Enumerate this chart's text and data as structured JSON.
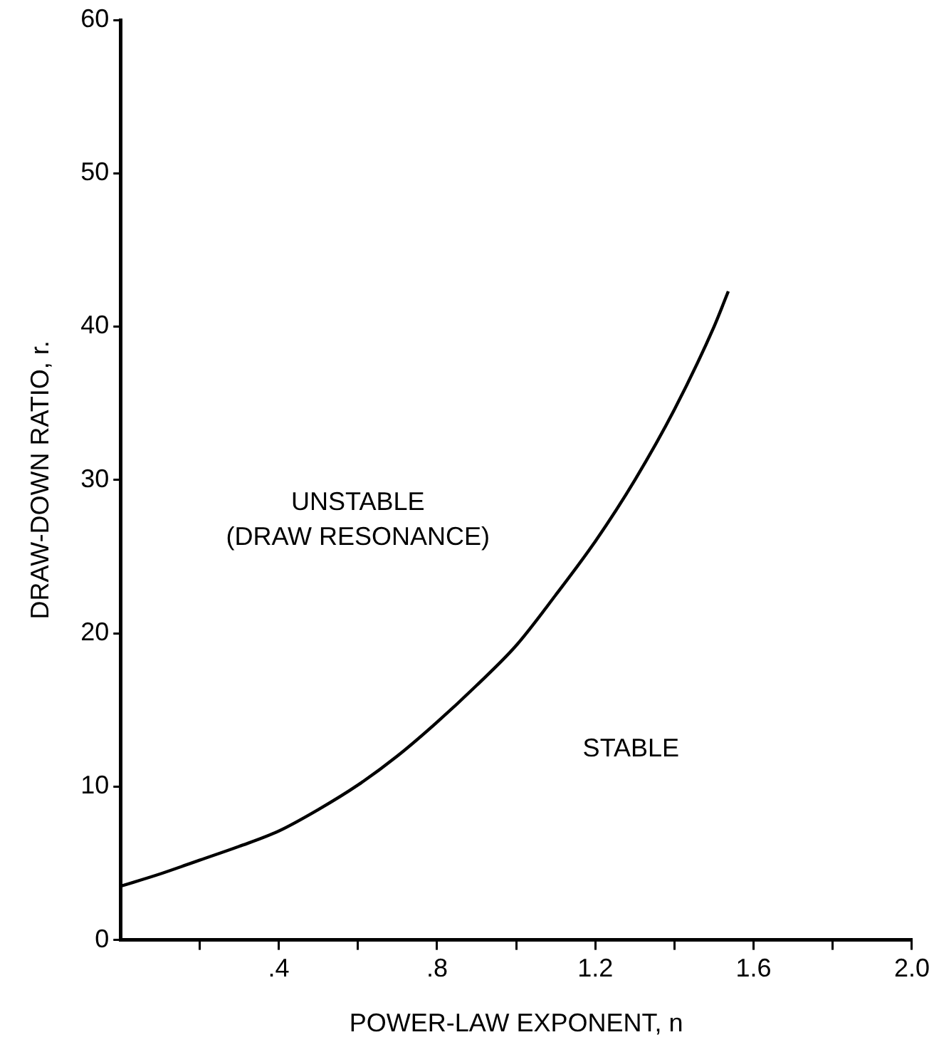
{
  "chart_data": {
    "type": "line",
    "xlabel": "POWER-LAW EXPONENT, n",
    "ylabel": "DRAW-DOWN RATIO, r.",
    "series": [
      {
        "color": "#000000",
        "x": [
          0,
          0.1,
          0.2,
          0.3,
          0.4,
          0.5,
          0.6,
          0.7,
          0.8,
          0.9,
          1.0,
          1.1,
          1.2,
          1.3,
          1.4,
          1.5,
          1.536
        ],
        "values": [
          3.5,
          4.3,
          5.2,
          6.1,
          7.1,
          8.5,
          10.1,
          12.0,
          14.2,
          16.6,
          19.2,
          22.5,
          26.0,
          30.0,
          34.6,
          40.0,
          42.3
        ]
      }
    ],
    "xlim": [
      0,
      2.0
    ],
    "ylim": [
      0,
      60
    ],
    "xticks": [
      {
        "value": 0.2,
        "label": null
      },
      {
        "value": 0.4,
        "label": ".4"
      },
      {
        "value": 0.6,
        "label": null
      },
      {
        "value": 0.8,
        "label": ".8"
      },
      {
        "value": 1.0,
        "label": null
      },
      {
        "value": 1.2,
        "label": "1.2"
      },
      {
        "value": 1.4,
        "label": null
      },
      {
        "value": 1.6,
        "label": "1.6"
      },
      {
        "value": 1.8,
        "label": null
      },
      {
        "value": 2.0,
        "label": "2.0"
      }
    ],
    "yticks": [
      0,
      10,
      20,
      30,
      40,
      50,
      60
    ],
    "grid": false,
    "legend": false,
    "marker": "none",
    "line_style": "solid",
    "annotations": [
      "UNSTABLE",
      "(DRAW RESONANCE)",
      "STABLE"
    ]
  }
}
